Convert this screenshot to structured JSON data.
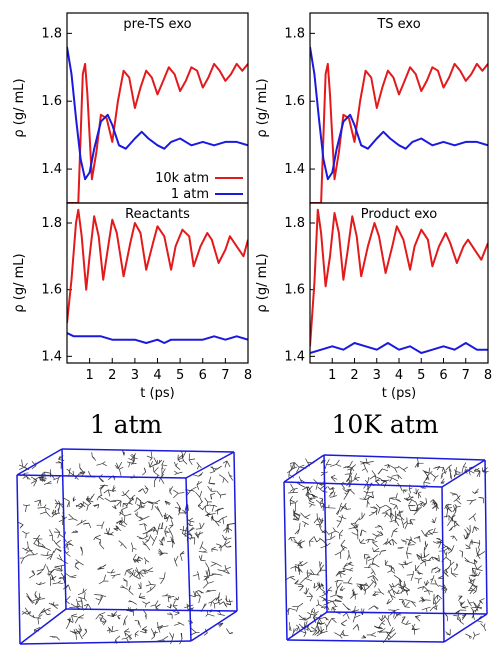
{
  "chart_data": [
    {
      "type": "line",
      "title": "pre-TS exo",
      "xlabel": "",
      "ylabel": "ρ (g/ mL)",
      "xlim": [
        0,
        8
      ],
      "ylim": [
        1.3,
        1.86
      ],
      "yticks": [
        1.4,
        1.6,
        1.8
      ],
      "xticks": [],
      "legend_position": "lower-right",
      "series": [
        {
          "name": "10k atm",
          "color": "#e31a1c",
          "x": [
            0,
            0.3,
            0.5,
            0.7,
            0.8,
            0.9,
            1.1,
            1.3,
            1.5,
            1.75,
            2.0,
            2.25,
            2.5,
            2.75,
            3.0,
            3.25,
            3.5,
            3.75,
            4.0,
            4.25,
            4.5,
            4.75,
            5.0,
            5.25,
            5.5,
            5.75,
            6.0,
            6.25,
            6.5,
            6.75,
            7.0,
            7.25,
            7.5,
            7.75,
            8.0
          ],
          "y": [
            1.3,
            1.3,
            1.3,
            1.68,
            1.71,
            1.62,
            1.37,
            1.45,
            1.56,
            1.55,
            1.48,
            1.6,
            1.69,
            1.67,
            1.58,
            1.64,
            1.69,
            1.67,
            1.62,
            1.66,
            1.7,
            1.68,
            1.63,
            1.66,
            1.7,
            1.69,
            1.64,
            1.67,
            1.71,
            1.69,
            1.66,
            1.68,
            1.71,
            1.69,
            1.71
          ]
        },
        {
          "name": "1 atm",
          "color": "#1a1adf",
          "x": [
            0,
            0.2,
            0.4,
            0.6,
            0.8,
            1.0,
            1.2,
            1.5,
            1.8,
            2.0,
            2.3,
            2.6,
            3.0,
            3.3,
            3.6,
            4.0,
            4.3,
            4.6,
            5.0,
            5.5,
            6.0,
            6.5,
            7.0,
            7.5,
            8.0
          ],
          "y": [
            1.76,
            1.68,
            1.55,
            1.43,
            1.37,
            1.39,
            1.46,
            1.54,
            1.56,
            1.53,
            1.47,
            1.46,
            1.49,
            1.51,
            1.49,
            1.47,
            1.46,
            1.48,
            1.49,
            1.47,
            1.48,
            1.47,
            1.48,
            1.48,
            1.47
          ]
        }
      ]
    },
    {
      "type": "line",
      "title": "TS exo",
      "xlabel": "",
      "ylabel": "ρ (g/ mL)",
      "xlim": [
        0,
        8
      ],
      "ylim": [
        1.3,
        1.86
      ],
      "yticks": [
        1.4,
        1.6,
        1.8
      ],
      "xticks": [],
      "series": [
        {
          "name": "10k atm",
          "color": "#e31a1c",
          "x": [
            0,
            0.3,
            0.5,
            0.7,
            0.8,
            0.9,
            1.1,
            1.3,
            1.5,
            1.75,
            2.0,
            2.25,
            2.5,
            2.75,
            3.0,
            3.25,
            3.5,
            3.75,
            4.0,
            4.25,
            4.5,
            4.75,
            5.0,
            5.25,
            5.5,
            5.75,
            6.0,
            6.25,
            6.5,
            6.75,
            7.0,
            7.25,
            7.5,
            7.75,
            8.0
          ],
          "y": [
            1.3,
            1.3,
            1.3,
            1.68,
            1.71,
            1.62,
            1.37,
            1.45,
            1.56,
            1.55,
            1.48,
            1.6,
            1.69,
            1.67,
            1.58,
            1.64,
            1.69,
            1.67,
            1.62,
            1.66,
            1.7,
            1.68,
            1.63,
            1.66,
            1.7,
            1.69,
            1.64,
            1.67,
            1.71,
            1.69,
            1.66,
            1.68,
            1.71,
            1.69,
            1.71
          ]
        },
        {
          "name": "1 atm",
          "color": "#1a1adf",
          "x": [
            0,
            0.2,
            0.4,
            0.6,
            0.8,
            1.0,
            1.2,
            1.5,
            1.8,
            2.0,
            2.3,
            2.6,
            3.0,
            3.3,
            3.6,
            4.0,
            4.3,
            4.6,
            5.0,
            5.5,
            6.0,
            6.5,
            7.0,
            7.5,
            8.0
          ],
          "y": [
            1.76,
            1.68,
            1.55,
            1.43,
            1.37,
            1.39,
            1.46,
            1.54,
            1.56,
            1.53,
            1.47,
            1.46,
            1.49,
            1.51,
            1.49,
            1.47,
            1.46,
            1.48,
            1.49,
            1.47,
            1.48,
            1.47,
            1.48,
            1.48,
            1.47
          ]
        }
      ]
    },
    {
      "type": "line",
      "title": "Reactants",
      "xlabel": "t (ps)",
      "ylabel": "ρ (g/ mL)",
      "xlim": [
        0,
        8
      ],
      "ylim": [
        1.38,
        1.86
      ],
      "yticks": [
        1.4,
        1.6,
        1.8
      ],
      "xticks": [
        1,
        2,
        3,
        4,
        5,
        6,
        7,
        8
      ],
      "series": [
        {
          "name": "10k atm",
          "color": "#e31a1c",
          "x": [
            0,
            0.2,
            0.4,
            0.5,
            0.65,
            0.85,
            1.0,
            1.2,
            1.4,
            1.6,
            1.8,
            2.0,
            2.2,
            2.5,
            2.8,
            3.0,
            3.25,
            3.5,
            3.8,
            4.0,
            4.3,
            4.6,
            4.8,
            5.1,
            5.4,
            5.6,
            5.9,
            6.2,
            6.4,
            6.7,
            7.0,
            7.2,
            7.5,
            7.8,
            8.0
          ],
          "y": [
            1.5,
            1.63,
            1.8,
            1.84,
            1.76,
            1.6,
            1.7,
            1.82,
            1.76,
            1.63,
            1.72,
            1.81,
            1.77,
            1.64,
            1.74,
            1.8,
            1.77,
            1.66,
            1.74,
            1.79,
            1.76,
            1.66,
            1.73,
            1.78,
            1.76,
            1.67,
            1.73,
            1.77,
            1.75,
            1.68,
            1.72,
            1.76,
            1.73,
            1.7,
            1.75
          ]
        },
        {
          "name": "1 atm",
          "color": "#1a1adf",
          "x": [
            0,
            0.3,
            0.6,
            1.0,
            1.5,
            2.0,
            2.5,
            3.0,
            3.5,
            4.0,
            4.3,
            4.6,
            5.0,
            5.5,
            6.0,
            6.5,
            7.0,
            7.5,
            8.0
          ],
          "y": [
            1.47,
            1.46,
            1.46,
            1.46,
            1.46,
            1.45,
            1.45,
            1.45,
            1.44,
            1.45,
            1.44,
            1.45,
            1.45,
            1.45,
            1.45,
            1.46,
            1.45,
            1.46,
            1.45
          ]
        }
      ]
    },
    {
      "type": "line",
      "title": "Product exo",
      "xlabel": "t (ps)",
      "ylabel": "ρ (g/ mL)",
      "xlim": [
        0,
        8
      ],
      "ylim": [
        1.38,
        1.86
      ],
      "yticks": [
        1.4,
        1.6,
        1.8
      ],
      "xticks": [
        1,
        2,
        3,
        4,
        5,
        6,
        7,
        8
      ],
      "series": [
        {
          "name": "10k atm",
          "color": "#e31a1c",
          "x": [
            0,
            0.2,
            0.35,
            0.5,
            0.7,
            0.9,
            1.1,
            1.3,
            1.5,
            1.7,
            1.9,
            2.1,
            2.3,
            2.6,
            2.9,
            3.1,
            3.4,
            3.7,
            3.9,
            4.2,
            4.5,
            4.7,
            5.0,
            5.3,
            5.5,
            5.8,
            6.1,
            6.3,
            6.6,
            6.9,
            7.1,
            7.4,
            7.7,
            8.0
          ],
          "y": [
            1.43,
            1.62,
            1.84,
            1.77,
            1.61,
            1.7,
            1.83,
            1.77,
            1.63,
            1.72,
            1.82,
            1.76,
            1.64,
            1.73,
            1.8,
            1.76,
            1.65,
            1.73,
            1.79,
            1.75,
            1.66,
            1.73,
            1.78,
            1.75,
            1.67,
            1.73,
            1.77,
            1.74,
            1.68,
            1.73,
            1.75,
            1.72,
            1.69,
            1.74
          ]
        },
        {
          "name": "1 atm",
          "color": "#1a1adf",
          "x": [
            0,
            0.5,
            1.0,
            1.5,
            2.0,
            2.5,
            3.0,
            3.5,
            4.0,
            4.5,
            5.0,
            5.5,
            6.0,
            6.5,
            7.0,
            7.5,
            8.0
          ],
          "y": [
            1.41,
            1.42,
            1.43,
            1.42,
            1.44,
            1.43,
            1.42,
            1.44,
            1.42,
            1.43,
            1.41,
            1.42,
            1.43,
            1.42,
            1.44,
            1.42,
            1.42
          ]
        }
      ]
    }
  ],
  "legend": {
    "items": [
      "10k atm",
      "1 atm"
    ]
  },
  "condition_labels": {
    "left": "1 atm",
    "right": "10K atm"
  },
  "colors": {
    "high_pressure": "#e31a1c",
    "low_pressure": "#1a1adf",
    "box": "#1a1adf"
  }
}
